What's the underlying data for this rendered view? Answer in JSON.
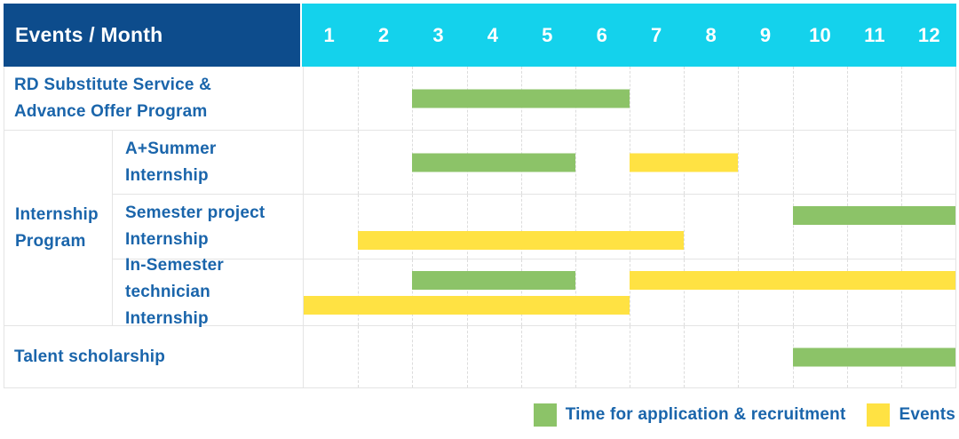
{
  "colors": {
    "navy": "#0D4C8C",
    "cyan": "#14D2EC",
    "green": "#8CC368",
    "yellow": "#FFE243",
    "label_blue": "#1A65AB",
    "grid_gray": "#E4E4E4"
  },
  "header": {
    "title": "Events / Month",
    "months": [
      "1",
      "2",
      "3",
      "4",
      "5",
      "6",
      "7",
      "8",
      "9",
      "10",
      "11",
      "12"
    ]
  },
  "group": {
    "label": "Internship\nProgram"
  },
  "rows": [
    {
      "label": "RD Substitute Service &\nAdvance Offer Program",
      "lanes": 1,
      "bars": [
        {
          "color": "green",
          "start": 3,
          "end": 6,
          "lane": 0
        }
      ]
    },
    {
      "label": "A+Summer\nInternship",
      "lanes": 1,
      "bars": [
        {
          "color": "green",
          "start": 3,
          "end": 5,
          "lane": 0
        },
        {
          "color": "yellow",
          "start": 7,
          "end": 8,
          "lane": 0
        }
      ]
    },
    {
      "label": "Semester project\nInternship",
      "lanes": 2,
      "bars": [
        {
          "color": "green",
          "start": 10,
          "end": 12,
          "lane": 0
        },
        {
          "color": "yellow",
          "start": 2,
          "end": 7,
          "lane": 1
        }
      ]
    },
    {
      "label": "In-Semester\ntechnician Internship",
      "lanes": 2,
      "bars": [
        {
          "color": "green",
          "start": 3,
          "end": 5,
          "lane": 0
        },
        {
          "color": "yellow",
          "start": 7,
          "end": 12,
          "lane": 0
        },
        {
          "color": "yellow",
          "start": 1,
          "end": 6,
          "lane": 1
        }
      ]
    },
    {
      "label": "Talent scholarship",
      "lanes": 1,
      "bars": [
        {
          "color": "green",
          "start": 10,
          "end": 12,
          "lane": 0
        }
      ]
    }
  ],
  "legend": {
    "items": [
      {
        "color": "green",
        "label": "Time for application & recruitment"
      },
      {
        "color": "yellow",
        "label": "Events"
      }
    ]
  },
  "chart_data": {
    "type": "bar",
    "subtype": "gantt-timeline",
    "title": "Events / Month",
    "xlabel": "Month",
    "x_ticks": [
      1,
      2,
      3,
      4,
      5,
      6,
      7,
      8,
      9,
      10,
      11,
      12
    ],
    "xlim": [
      1,
      12
    ],
    "grid": "vertical-dashed",
    "legend_position": "bottom-right",
    "series_legend": [
      "Time for application & recruitment",
      "Events"
    ],
    "rows": [
      {
        "event": "RD Substitute Service & Advance Offer Program",
        "group": null,
        "bars": [
          {
            "series": "Time for application & recruitment",
            "start_month": 3,
            "end_month": 6
          }
        ]
      },
      {
        "event": "A+Summer Internship",
        "group": "Internship Program",
        "bars": [
          {
            "series": "Time for application & recruitment",
            "start_month": 3,
            "end_month": 5
          },
          {
            "series": "Events",
            "start_month": 7,
            "end_month": 8
          }
        ]
      },
      {
        "event": "Semester project Internship",
        "group": "Internship Program",
        "bars": [
          {
            "series": "Time for application & recruitment",
            "start_month": 10,
            "end_month": 12
          },
          {
            "series": "Events",
            "start_month": 2,
            "end_month": 7
          }
        ]
      },
      {
        "event": "In-Semester technician Internship",
        "group": "Internship Program",
        "bars": [
          {
            "series": "Time for application & recruitment",
            "start_month": 3,
            "end_month": 5
          },
          {
            "series": "Events",
            "start_month": 7,
            "end_month": 12
          },
          {
            "series": "Events",
            "start_month": 1,
            "end_month": 6
          }
        ]
      },
      {
        "event": "Talent scholarship",
        "group": null,
        "bars": [
          {
            "series": "Time for application & recruitment",
            "start_month": 10,
            "end_month": 12
          }
        ]
      }
    ]
  }
}
